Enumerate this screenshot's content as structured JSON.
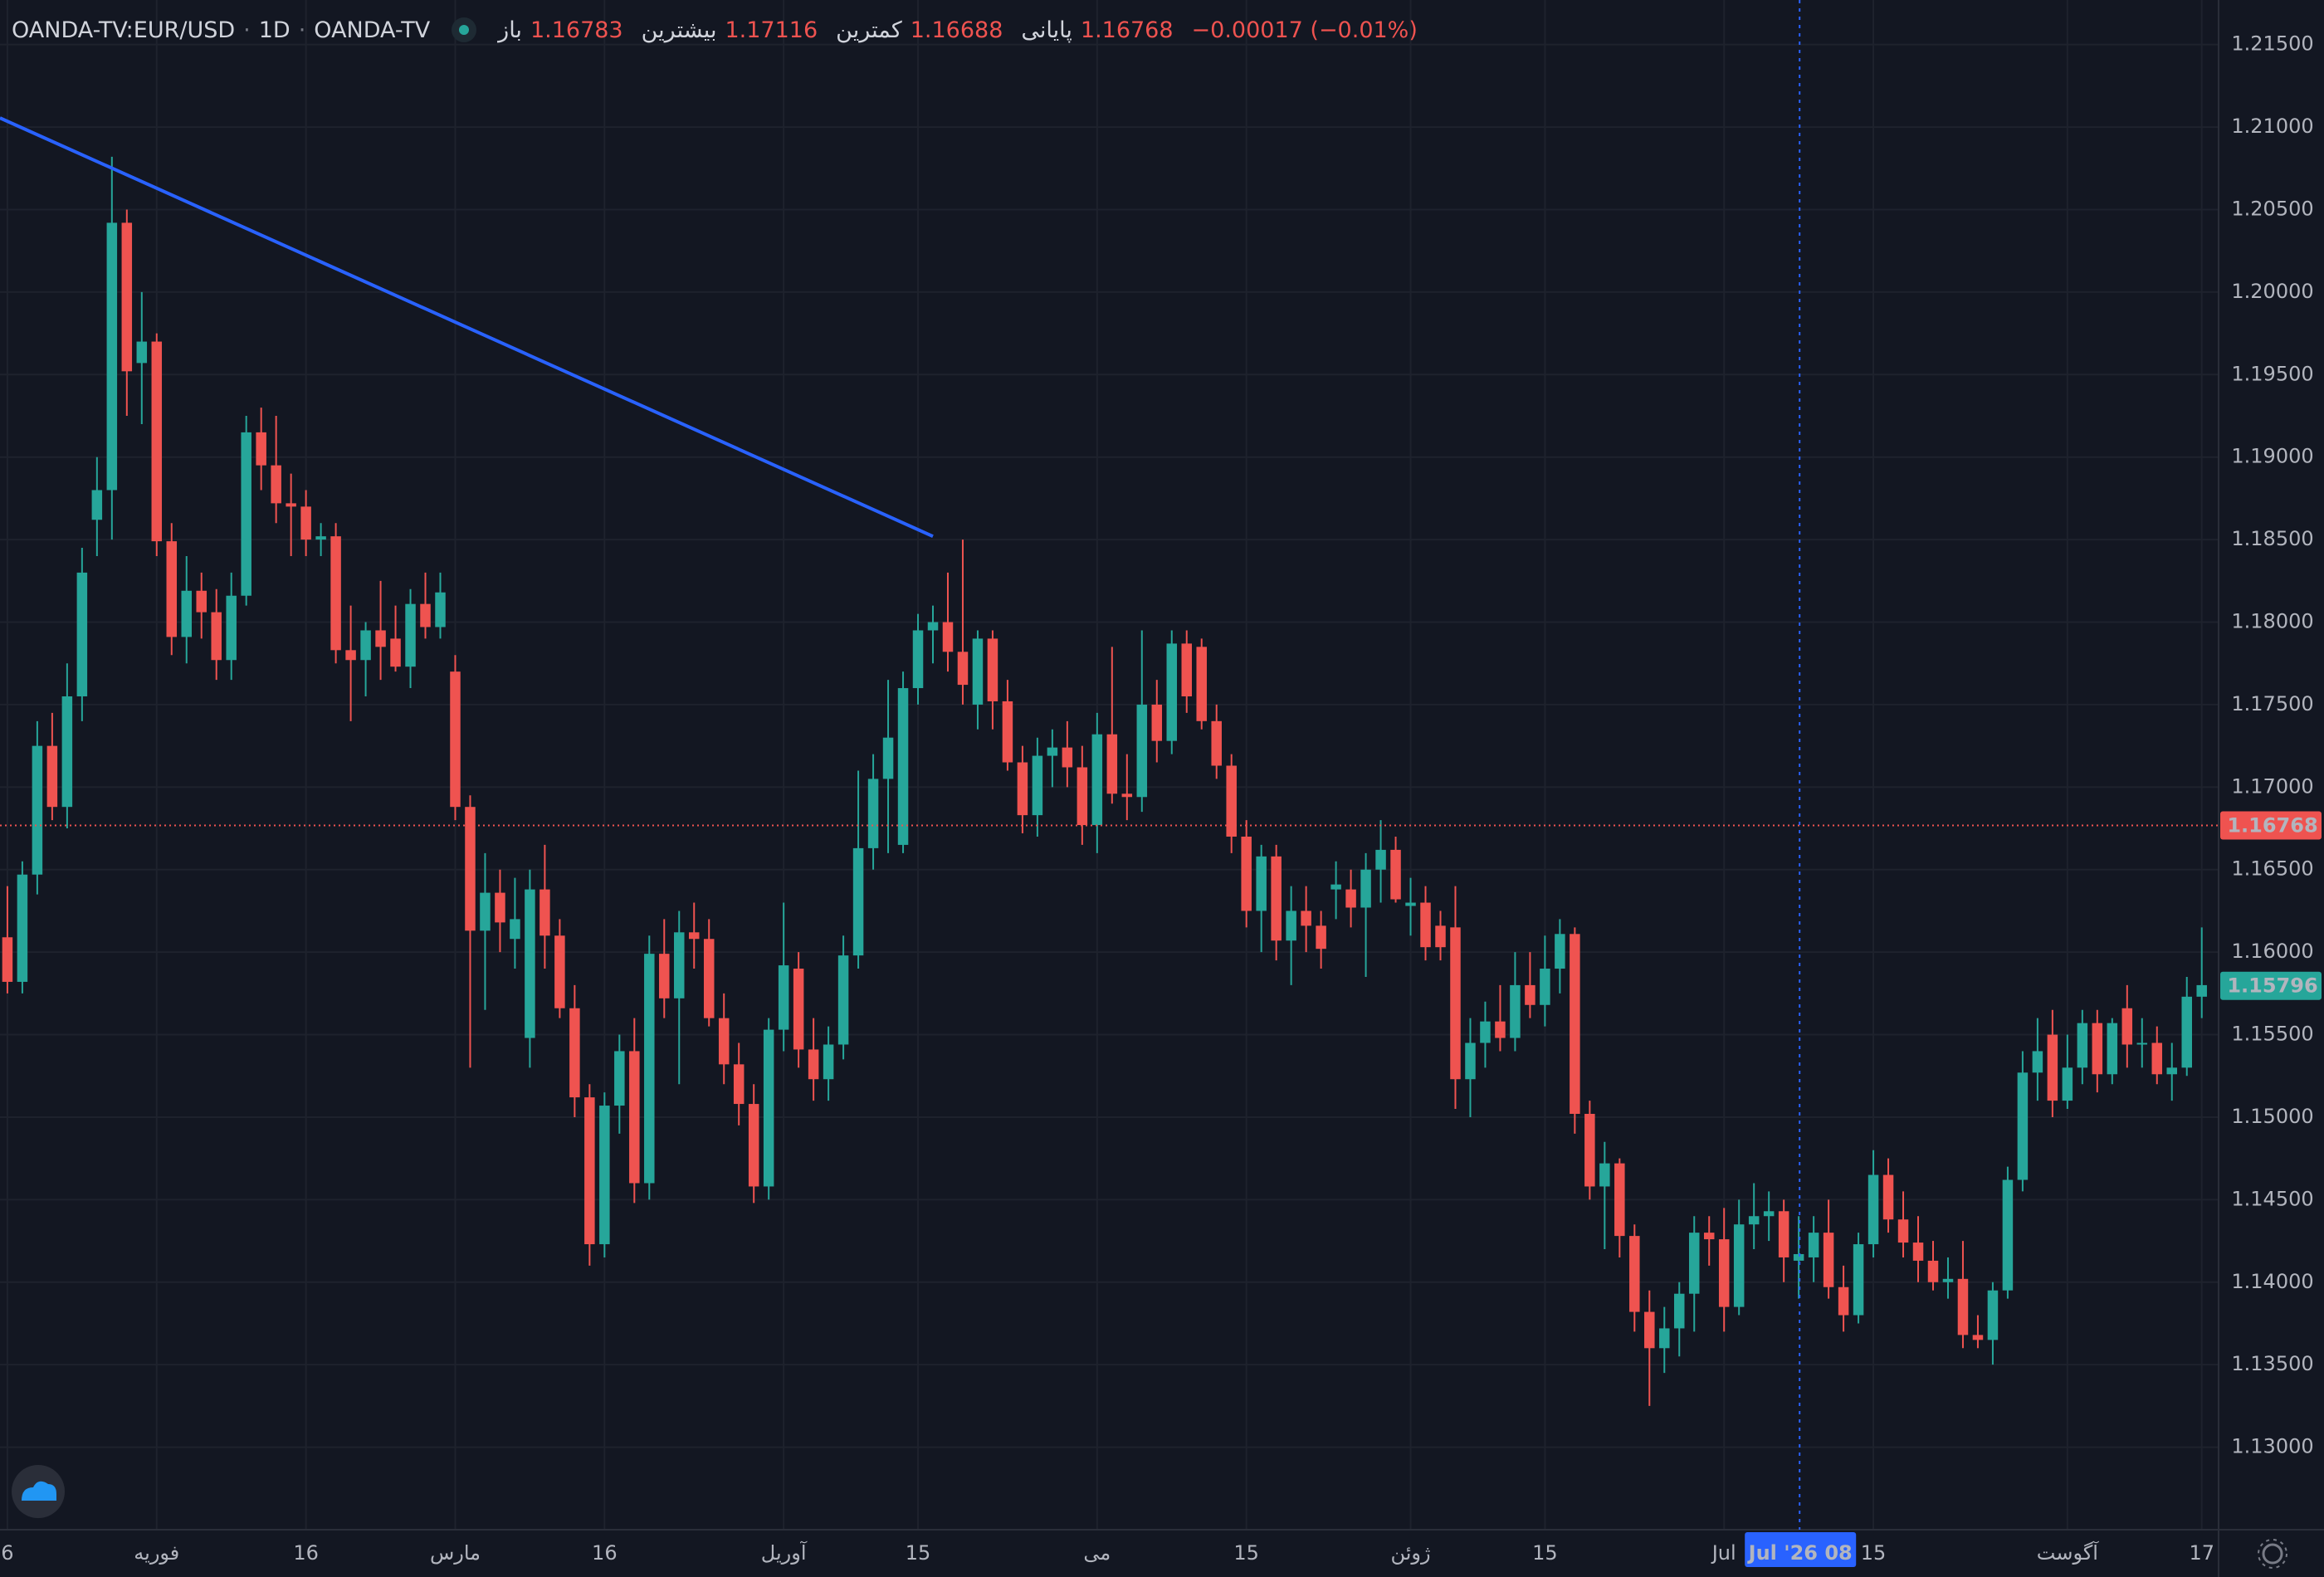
{
  "chart_data": {
    "type": "candlestick",
    "symbol": "OANDA-TV:EUR/USD",
    "interval": "1D",
    "source": "OANDA-TV",
    "legend": [
      {
        "label": "باز",
        "value": "1.16783"
      },
      {
        "label": "بیشترین",
        "value": "1.17116"
      },
      {
        "label": "کمترین",
        "value": "1.16688"
      },
      {
        "label": "پایانی",
        "value": "1.16768"
      }
    ],
    "change": "−0.00017 (−0.01%)",
    "crosshair_label": "Jul '26 08",
    "up_color": "#26a69a",
    "down_color": "#ef5350",
    "grid": true,
    "ylim": [
      1.125,
      1.2177
    ],
    "yticks": [
      {
        "value": 1.13,
        "label": "1.13000"
      },
      {
        "value": 1.135,
        "label": "1.13500"
      },
      {
        "value": 1.14,
        "label": "1.14000"
      },
      {
        "value": 1.145,
        "label": "1.14500"
      },
      {
        "value": 1.15,
        "label": "1.15000"
      },
      {
        "value": 1.155,
        "label": "1.15500"
      },
      {
        "value": 1.16,
        "label": "1.16000"
      },
      {
        "value": 1.165,
        "label": "1.16500"
      },
      {
        "value": 1.17,
        "label": "1.17000"
      },
      {
        "value": 1.175,
        "label": "1.17500"
      },
      {
        "value": 1.18,
        "label": "1.18000"
      },
      {
        "value": 1.185,
        "label": "1.18500"
      },
      {
        "value": 1.19,
        "label": "1.19000"
      },
      {
        "value": 1.195,
        "label": "1.19500"
      },
      {
        "value": 1.2,
        "label": "1.20000"
      },
      {
        "value": 1.205,
        "label": "1.20500"
      },
      {
        "value": 1.21,
        "label": "1.21000"
      },
      {
        "value": 1.215,
        "label": "1.21500"
      }
    ],
    "price_lines": [
      {
        "value": 1.16768,
        "color": "#ef5350",
        "dotted": true
      },
      {
        "value": 1.15796,
        "color": "#26a69a",
        "dotted": false
      }
    ],
    "trendline": {
      "x": [
        0,
        62
      ],
      "y": [
        1.2104,
        1.1852
      ],
      "color": "#2962ff"
    },
    "categories": [
      "6",
      null,
      null,
      null,
      null,
      null,
      null,
      null,
      null,
      null,
      "فوریه",
      null,
      null,
      null,
      null,
      null,
      null,
      null,
      null,
      null,
      "16",
      null,
      null,
      null,
      null,
      null,
      null,
      null,
      null,
      null,
      "مارس",
      null,
      null,
      null,
      null,
      null,
      null,
      null,
      null,
      null,
      "16",
      null,
      null,
      null,
      null,
      null,
      null,
      null,
      null,
      null,
      null,
      null,
      "آوریل",
      null,
      null,
      null,
      null,
      null,
      null,
      null,
      null,
      "15",
      null,
      null,
      null,
      null,
      null,
      null,
      null,
      null,
      null,
      null,
      null,
      "می",
      null,
      null,
      null,
      null,
      null,
      null,
      null,
      null,
      null,
      "15",
      null,
      null,
      null,
      null,
      null,
      null,
      null,
      null,
      null,
      null,
      "ژوئن",
      null,
      null,
      null,
      null,
      null,
      null,
      null,
      null,
      "15",
      null,
      null,
      null,
      null,
      null,
      null,
      null,
      null,
      null,
      null,
      null,
      "Jul",
      null,
      null,
      null,
      null,
      null,
      null,
      null,
      null,
      null,
      "15",
      null,
      null,
      null,
      null,
      null,
      null,
      null,
      null,
      null,
      null,
      null,
      null,
      "آگوست",
      null,
      null,
      null,
      null,
      null,
      null,
      null,
      null,
      "17"
    ],
    "open": [
      1.1609,
      1.1582,
      1.1647,
      1.1725,
      1.1688,
      1.1755,
      1.1862,
      1.188,
      1.2042,
      1.1957,
      1.197,
      1.1849,
      1.1791,
      1.1819,
      1.1806,
      1.1777,
      1.1816,
      1.1915,
      1.1895,
      1.1872,
      1.187,
      1.185,
      1.1852,
      1.1783,
      1.1777,
      1.1795,
      1.179,
      1.1773,
      1.1811,
      1.1797,
      1.177,
      1.1688,
      1.1613,
      1.1636,
      1.1608,
      1.1548,
      1.1638,
      1.161,
      1.1566,
      1.1512,
      1.1423,
      1.1507,
      1.154,
      1.146,
      1.1599,
      1.1572,
      1.1612,
      1.1608,
      1.156,
      1.1532,
      1.1508,
      1.1458,
      1.1553,
      1.159,
      1.1541,
      1.1523,
      1.1544,
      1.1598,
      1.1663,
      1.1705,
      1.1665,
      1.176,
      1.1795,
      1.18,
      1.1782,
      1.175,
      1.179,
      1.1752,
      1.1715,
      1.1683,
      1.1719,
      1.1724,
      1.1712,
      1.1677,
      1.1732,
      1.1696,
      1.1694,
      1.175,
      1.1728,
      1.1787,
      1.1785,
      1.174,
      1.1713,
      1.167,
      1.1625,
      1.1658,
      1.1607,
      1.1625,
      1.1616,
      1.1638,
      1.1638,
      1.1627,
      1.165,
      1.1662,
      1.1628,
      1.163,
      1.1616,
      1.1615,
      1.1523,
      1.1545,
      1.1558,
      1.1548,
      1.158,
      1.1568,
      1.159,
      1.1611,
      1.1502,
      1.1458,
      1.1472,
      1.1428,
      1.1382,
      1.136,
      1.1372,
      1.1393,
      1.143,
      1.1426,
      1.1385,
      1.1435,
      1.144,
      1.1443,
      1.1413,
      1.1415,
      1.143,
      1.1397,
      1.138,
      1.1423,
      1.1465,
      1.1438,
      1.1424,
      1.1413,
      1.14,
      1.1402,
      1.1368,
      1.1365,
      1.1395,
      1.1462,
      1.1527,
      1.155,
      1.151,
      1.153,
      1.1557,
      1.1526,
      1.1566,
      1.1544,
      1.1545,
      1.1526,
      1.153,
      1.1573
    ],
    "high": [
      1.164,
      1.1655,
      1.174,
      1.1745,
      1.1775,
      1.1845,
      1.19,
      1.2082,
      1.205,
      1.2,
      1.1975,
      1.186,
      1.184,
      1.183,
      1.182,
      1.183,
      1.1925,
      1.193,
      1.1925,
      1.189,
      1.188,
      1.186,
      1.186,
      1.181,
      1.18,
      1.1825,
      1.181,
      1.182,
      1.183,
      1.183,
      1.178,
      1.1695,
      1.166,
      1.165,
      1.1645,
      1.165,
      1.1665,
      1.162,
      1.158,
      1.152,
      1.1515,
      1.155,
      1.156,
      1.161,
      1.162,
      1.1625,
      1.163,
      1.162,
      1.1575,
      1.1545,
      1.152,
      1.156,
      1.163,
      1.16,
      1.156,
      1.1555,
      1.161,
      1.171,
      1.172,
      1.1765,
      1.177,
      1.1805,
      1.181,
      1.183,
      1.185,
      1.1795,
      1.1795,
      1.1765,
      1.1725,
      1.173,
      1.1735,
      1.174,
      1.1725,
      1.1745,
      1.1785,
      1.172,
      1.1795,
      1.1765,
      1.1795,
      1.1795,
      1.179,
      1.175,
      1.172,
      1.168,
      1.1665,
      1.1665,
      1.164,
      1.164,
      1.1625,
      1.1655,
      1.165,
      1.166,
      1.168,
      1.167,
      1.1645,
      1.164,
      1.1625,
      1.164,
      1.156,
      1.157,
      1.158,
      1.16,
      1.16,
      1.161,
      1.162,
      1.1615,
      1.151,
      1.1485,
      1.1475,
      1.1435,
      1.1395,
      1.1385,
      1.14,
      1.144,
      1.144,
      1.1445,
      1.145,
      1.146,
      1.1455,
      1.145,
      1.144,
      1.144,
      1.145,
      1.141,
      1.143,
      1.148,
      1.1475,
      1.1455,
      1.144,
      1.1425,
      1.1415,
      1.1425,
      1.138,
      1.14,
      1.147,
      1.154,
      1.156,
      1.1565,
      1.155,
      1.1565,
      1.1565,
      1.156,
      1.158,
      1.156,
      1.1555,
      1.1545,
      1.1585,
      1.1615
    ],
    "low": [
      1.1575,
      1.1575,
      1.1635,
      1.168,
      1.1675,
      1.174,
      1.184,
      1.185,
      1.1925,
      1.192,
      1.184,
      1.178,
      1.1775,
      1.179,
      1.1765,
      1.1765,
      1.181,
      1.188,
      1.186,
      1.184,
      1.184,
      1.184,
      1.1775,
      1.174,
      1.1755,
      1.1765,
      1.177,
      1.176,
      1.179,
      1.179,
      1.168,
      1.153,
      1.1565,
      1.16,
      1.159,
      1.153,
      1.159,
      1.156,
      1.15,
      1.141,
      1.1415,
      1.149,
      1.1448,
      1.145,
      1.156,
      1.152,
      1.159,
      1.1555,
      1.152,
      1.1495,
      1.1448,
      1.145,
      1.154,
      1.153,
      1.151,
      1.151,
      1.1535,
      1.159,
      1.165,
      1.166,
      1.166,
      1.175,
      1.1775,
      1.177,
      1.175,
      1.1735,
      1.1735,
      1.171,
      1.1672,
      1.167,
      1.17,
      1.17,
      1.1665,
      1.166,
      1.169,
      1.168,
      1.1685,
      1.1715,
      1.172,
      1.1745,
      1.1735,
      1.1705,
      1.166,
      1.1615,
      1.16,
      1.1595,
      1.158,
      1.16,
      1.159,
      1.162,
      1.1615,
      1.1585,
      1.163,
      1.163,
      1.161,
      1.1595,
      1.1595,
      1.1505,
      1.15,
      1.153,
      1.154,
      1.154,
      1.156,
      1.1555,
      1.1575,
      1.149,
      1.145,
      1.142,
      1.1415,
      1.137,
      1.1325,
      1.1345,
      1.1355,
      1.137,
      1.141,
      1.137,
      1.138,
      1.142,
      1.1425,
      1.14,
      1.139,
      1.14,
      1.139,
      1.137,
      1.1375,
      1.1415,
      1.143,
      1.1415,
      1.14,
      1.1395,
      1.139,
      1.136,
      1.136,
      1.135,
      1.139,
      1.1455,
      1.151,
      1.15,
      1.1505,
      1.152,
      1.1515,
      1.152,
      1.153,
      1.153,
      1.152,
      1.151,
      1.1525,
      1.156
    ],
    "close": [
      1.1582,
      1.1647,
      1.1725,
      1.1688,
      1.1755,
      1.183,
      1.188,
      1.2042,
      1.1952,
      1.197,
      1.1849,
      1.1791,
      1.1819,
      1.1806,
      1.1777,
      1.1816,
      1.1915,
      1.1895,
      1.1872,
      1.187,
      1.185,
      1.1852,
      1.1783,
      1.1777,
      1.1795,
      1.1785,
      1.1773,
      1.1811,
      1.1797,
      1.1818,
      1.1688,
      1.1613,
      1.1636,
      1.1618,
      1.162,
      1.1638,
      1.161,
      1.1566,
      1.1512,
      1.1423,
      1.1507,
      1.154,
      1.146,
      1.1599,
      1.1572,
      1.1612,
      1.1608,
      1.156,
      1.1532,
      1.1508,
      1.1458,
      1.1553,
      1.1592,
      1.1541,
      1.1523,
      1.1544,
      1.1598,
      1.1663,
      1.1705,
      1.173,
      1.176,
      1.1795,
      1.18,
      1.1782,
      1.1762,
      1.179,
      1.1752,
      1.1715,
      1.1683,
      1.1719,
      1.1724,
      1.1712,
      1.1677,
      1.1732,
      1.1696,
      1.1694,
      1.175,
      1.1728,
      1.1787,
      1.1755,
      1.174,
      1.1713,
      1.167,
      1.1625,
      1.1658,
      1.1607,
      1.1625,
      1.1616,
      1.1602,
      1.1641,
      1.1627,
      1.165,
      1.1662,
      1.1632,
      1.163,
      1.1603,
      1.1603,
      1.1523,
      1.1545,
      1.1558,
      1.1548,
      1.158,
      1.1568,
      1.159,
      1.1611,
      1.1502,
      1.1458,
      1.1472,
      1.1428,
      1.1382,
      1.136,
      1.1372,
      1.1393,
      1.143,
      1.1426,
      1.1385,
      1.1435,
      1.144,
      1.1443,
      1.1415,
      1.1417,
      1.143,
      1.1397,
      1.138,
      1.1423,
      1.1465,
      1.1438,
      1.1424,
      1.1413,
      1.14,
      1.1402,
      1.1368,
      1.1365,
      1.1395,
      1.1462,
      1.1527,
      1.154,
      1.151,
      1.153,
      1.1557,
      1.1526,
      1.1557,
      1.1544,
      1.1545,
      1.1526,
      1.153,
      1.1573,
      1.158
    ]
  }
}
